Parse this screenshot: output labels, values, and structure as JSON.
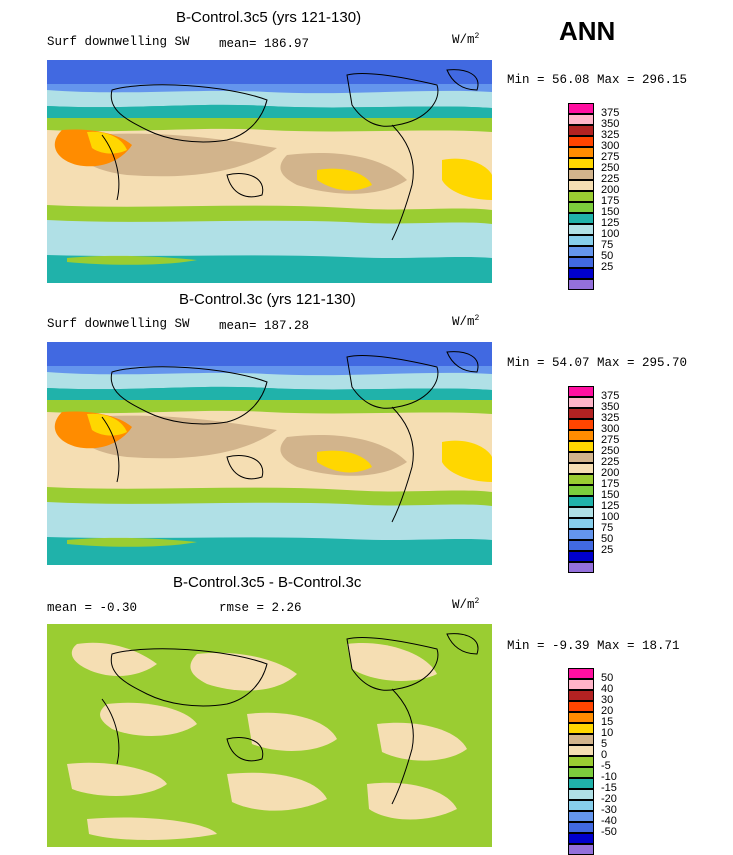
{
  "season": "ANN",
  "panels": [
    {
      "title": "B-Control.3c5 (yrs 121-130)",
      "field": "Surf downwelling SW",
      "stat": "mean= 186.97",
      "units_main": "W/m",
      "units_sup": "2",
      "minmax": "Min =  56.08 Max = 296.15",
      "levels": [
        "375",
        "350",
        "325",
        "300",
        "275",
        "250",
        "225",
        "200",
        "175",
        "150",
        "125",
        "100",
        "75",
        "50",
        "25"
      ],
      "colors": [
        "#ff0fa0",
        "#ffb4c8",
        "#b22222",
        "#ff4500",
        "#ff8c00",
        "#ffd700",
        "#d2b48c",
        "#f5deb3",
        "#9acd32",
        "#7ccd3c",
        "#20b2aa",
        "#b0e0e6",
        "#87ceeb",
        "#6495ed",
        "#4169e1",
        "#0000cd",
        "#9370db"
      ]
    },
    {
      "title": "B-Control.3c (yrs 121-130)",
      "field": "Surf downwelling SW",
      "stat": "mean= 187.28",
      "units_main": "W/m",
      "units_sup": "2",
      "minmax": "Min =  54.07 Max = 295.70",
      "levels": [
        "375",
        "350",
        "325",
        "300",
        "275",
        "250",
        "225",
        "200",
        "175",
        "150",
        "125",
        "100",
        "75",
        "50",
        "25"
      ],
      "colors": [
        "#ff0fa0",
        "#ffb4c8",
        "#b22222",
        "#ff4500",
        "#ff8c00",
        "#ffd700",
        "#d2b48c",
        "#f5deb3",
        "#9acd32",
        "#7ccd3c",
        "#20b2aa",
        "#b0e0e6",
        "#87ceeb",
        "#6495ed",
        "#4169e1",
        "#0000cd",
        "#9370db"
      ]
    },
    {
      "title": "B-Control.3c5 - B-Control.3c",
      "mean_label": "mean =  -0.30",
      "rmse_label": "rmse =   2.26",
      "units_main": "W/m",
      "units_sup": "2",
      "minmax": "Min =  -9.39 Max =  18.71",
      "levels": [
        "50",
        "40",
        "30",
        "20",
        "15",
        "10",
        "5",
        "0",
        "-5",
        "-10",
        "-15",
        "-20",
        "-30",
        "-40",
        "-50"
      ],
      "colors": [
        "#ff0fa0",
        "#ffb4c8",
        "#b22222",
        "#ff4500",
        "#ff8c00",
        "#ffd700",
        "#d2b48c",
        "#f5deb3",
        "#9acd32",
        "#7ccd3c",
        "#20b2aa",
        "#b0e0e6",
        "#87ceeb",
        "#6495ed",
        "#4169e1",
        "#0000cd",
        "#9370db"
      ]
    }
  ]
}
